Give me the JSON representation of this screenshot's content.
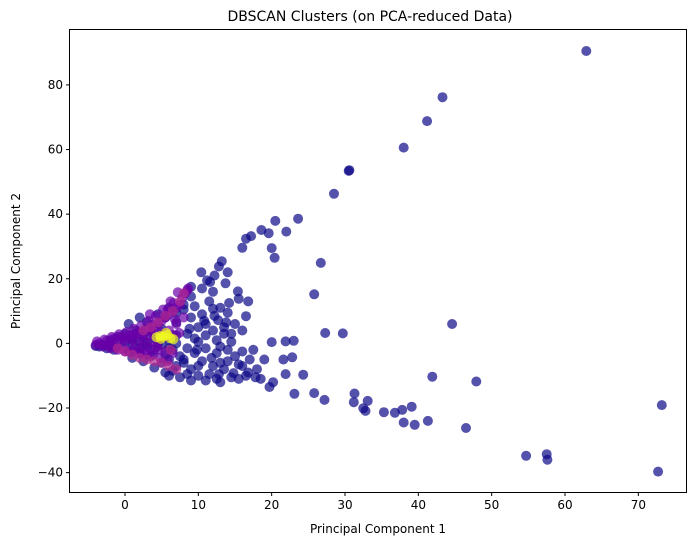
{
  "chart_data": {
    "type": "scatter",
    "title": "DBSCAN Clusters (on PCA-reduced Data)",
    "xlabel": "Principal Component 1",
    "ylabel": "Principal Component 2",
    "xlim": [
      -7.5,
      76.5
    ],
    "ylim": [
      -46,
      97
    ],
    "xticks": [
      0,
      10,
      20,
      30,
      40,
      50,
      60,
      70
    ],
    "yticks": [
      -40,
      -20,
      0,
      20,
      40,
      60,
      80
    ],
    "grid": false,
    "legend": "none",
    "colors": {
      "noise": "#0d0887",
      "cluster_purple": "#6a00a8",
      "cluster_magenta": "#b12a90",
      "cluster_yellow": "#f0f921"
    },
    "series": [
      {
        "color": "#0d0887",
        "points": [
          [
            62.9,
            90.5
          ],
          [
            43.3,
            76.2
          ],
          [
            41.2,
            68.8
          ],
          [
            38.0,
            60.6
          ],
          [
            30.6,
            53.6
          ],
          [
            30.5,
            53.4
          ],
          [
            28.5,
            46.3
          ],
          [
            23.6,
            38.6
          ],
          [
            20.5,
            37.9
          ],
          [
            18.6,
            35.1
          ],
          [
            17.2,
            33.2
          ],
          [
            16.5,
            32.4
          ],
          [
            22.0,
            34.6
          ],
          [
            19.6,
            34.1
          ],
          [
            16.0,
            29.6
          ],
          [
            20.0,
            29.5
          ],
          [
            20.4,
            26.5
          ],
          [
            26.7,
            24.9
          ],
          [
            13.2,
            25.4
          ],
          [
            12.8,
            23.8
          ],
          [
            14.0,
            22.0
          ],
          [
            10.4,
            22.0
          ],
          [
            11.6,
            19.0
          ],
          [
            13.7,
            18.6
          ],
          [
            9.0,
            17.5
          ],
          [
            15.4,
            16.1
          ],
          [
            16.8,
            13.0
          ],
          [
            25.8,
            15.2
          ],
          [
            15.5,
            13.8
          ],
          [
            44.6,
            6.0
          ],
          [
            12.0,
            10.7
          ],
          [
            16.5,
            8.4
          ],
          [
            12.7,
            7.2
          ],
          [
            11.0,
            6.0
          ],
          [
            13.5,
            5.0
          ],
          [
            14.5,
            3.0
          ],
          [
            27.3,
            3.2
          ],
          [
            29.7,
            3.1
          ],
          [
            20.0,
            0.4
          ],
          [
            21.9,
            0.6
          ],
          [
            23.0,
            0.8
          ],
          [
            17.5,
            -2.0
          ],
          [
            21.6,
            -5.0
          ],
          [
            22.8,
            -4.3
          ],
          [
            19.0,
            -5.0
          ],
          [
            14.0,
            -5.5
          ],
          [
            16.0,
            -7.0
          ],
          [
            41.9,
            -10.3
          ],
          [
            47.9,
            -11.8
          ],
          [
            24.3,
            -9.7
          ],
          [
            21.9,
            -9.5
          ],
          [
            20.2,
            -12.0
          ],
          [
            19.7,
            -13.5
          ],
          [
            18.5,
            -11.0
          ],
          [
            17.8,
            -10.5
          ],
          [
            16.8,
            -9.0
          ],
          [
            15.5,
            -11.0
          ],
          [
            14.5,
            -10.5
          ],
          [
            23.1,
            -15.6
          ],
          [
            25.8,
            -15.4
          ],
          [
            27.2,
            -17.5
          ],
          [
            31.3,
            -15.5
          ],
          [
            31.2,
            -18.2
          ],
          [
            33.1,
            -17.8
          ],
          [
            32.5,
            -20.1
          ],
          [
            32.8,
            -20.9
          ],
          [
            35.3,
            -21.3
          ],
          [
            36.8,
            -21.5
          ],
          [
            37.8,
            -20.6
          ],
          [
            38.0,
            -24.5
          ],
          [
            39.1,
            -19.6
          ],
          [
            39.5,
            -25.2
          ],
          [
            41.3,
            -24.0
          ],
          [
            46.5,
            -26.2
          ],
          [
            54.7,
            -34.8
          ],
          [
            57.5,
            -34.3
          ],
          [
            57.6,
            -36.0
          ],
          [
            73.2,
            -19.1
          ],
          [
            72.7,
            -39.7
          ],
          [
            8.0,
            12.0
          ],
          [
            9.0,
            14.5
          ],
          [
            10.5,
            9.0
          ],
          [
            7.0,
            6.5
          ],
          [
            8.5,
            3.0
          ],
          [
            9.5,
            -3.0
          ],
          [
            10.5,
            -5.5
          ],
          [
            12.0,
            -7.0
          ],
          [
            12.5,
            -3.0
          ],
          [
            11.0,
            2.5
          ],
          [
            13.0,
            -1.0
          ],
          [
            10.0,
            0.5
          ],
          [
            6.5,
            -2.0
          ],
          [
            7.5,
            -4.0
          ],
          [
            8.0,
            -6.0
          ],
          [
            9.0,
            -8.0
          ],
          [
            11.5,
            -9.5
          ],
          [
            12.5,
            -11.0
          ],
          [
            13.5,
            -8.0
          ],
          [
            15.0,
            -4.0
          ],
          [
            16.0,
            -2.5
          ],
          [
            14.5,
            0.5
          ],
          [
            12.0,
            4.0
          ],
          [
            10.0,
            5.0
          ],
          [
            9.0,
            8.0
          ],
          [
            11.5,
            13.0
          ],
          [
            12.0,
            16.0
          ],
          [
            10.5,
            17.0
          ],
          [
            9.5,
            11.5
          ],
          [
            13.0,
            11.0
          ],
          [
            14.0,
            9.5
          ],
          [
            15.0,
            6.0
          ],
          [
            16.0,
            4.0
          ],
          [
            17.0,
            -5.0
          ],
          [
            18.0,
            -8.0
          ],
          [
            13.0,
            -12.0
          ],
          [
            11.0,
            -11.5
          ],
          [
            10.0,
            -10.0
          ],
          [
            8.5,
            -9.5
          ],
          [
            7.0,
            -7.0
          ],
          [
            6.0,
            -5.0
          ],
          [
            5.5,
            -3.5
          ],
          [
            4.0,
            -2.0
          ],
          [
            3.0,
            -1.0
          ],
          [
            2.0,
            0.5
          ],
          [
            1.0,
            1.5
          ],
          [
            0.0,
            3.0
          ],
          [
            -1.0,
            2.0
          ],
          [
            -2.0,
            1.0
          ],
          [
            -3.0,
            -0.5
          ],
          [
            -3.5,
            -1.0
          ],
          [
            -4.0,
            -0.8
          ],
          [
            -2.5,
            -1.5
          ],
          [
            -1.5,
            -2.0
          ],
          [
            0.5,
            -2.5
          ],
          [
            2.0,
            -3.0
          ],
          [
            3.5,
            -4.0
          ],
          [
            5.0,
            -6.0
          ],
          [
            6.5,
            -8.5
          ],
          [
            7.5,
            -10.5
          ],
          [
            9.0,
            -11.5
          ],
          [
            4.5,
            0.0
          ],
          [
            6.0,
            1.0
          ],
          [
            7.0,
            2.5
          ],
          [
            5.0,
            4.5
          ],
          [
            3.5,
            3.5
          ],
          [
            2.5,
            2.0
          ],
          [
            1.5,
            4.0
          ],
          [
            0.5,
            6.0
          ],
          [
            3.0,
            6.5
          ],
          [
            5.5,
            8.0
          ],
          [
            7.0,
            9.5
          ],
          [
            8.0,
            10.5
          ],
          [
            6.0,
            11.0
          ],
          [
            4.5,
            9.0
          ],
          [
            2.0,
            8.0
          ],
          [
            1.0,
            -4.5
          ],
          [
            2.5,
            -5.5
          ],
          [
            4.0,
            -7.5
          ],
          [
            5.5,
            -9.0
          ],
          [
            6.0,
            -10.0
          ],
          [
            8.5,
            -1.5
          ],
          [
            9.5,
            1.5
          ],
          [
            11.0,
            -1.5
          ],
          [
            12.5,
            1.0
          ],
          [
            13.5,
            3.0
          ],
          [
            14.0,
            -2.0
          ],
          [
            15.5,
            -6.5
          ],
          [
            13.0,
            -6.0
          ],
          [
            10.0,
            -7.0
          ],
          [
            8.0,
            -5.0
          ],
          [
            7.0,
            0.0
          ],
          [
            6.0,
            -1.5
          ],
          [
            5.0,
            -0.5
          ],
          [
            4.0,
            1.5
          ],
          [
            3.0,
            0.0
          ],
          [
            2.0,
            -1.5
          ],
          [
            1.0,
            0.0
          ],
          [
            0.0,
            0.5
          ],
          [
            -1.0,
            -1.0
          ],
          [
            -2.0,
            -0.5
          ],
          [
            16.5,
            -10.0
          ],
          [
            14.8,
            -9.2
          ],
          [
            12.8,
            -9.5
          ],
          [
            11.8,
            -4.5
          ],
          [
            9.8,
            -2.0
          ],
          [
            8.8,
            4.5
          ],
          [
            10.8,
            7.0
          ],
          [
            12.2,
            8.5
          ],
          [
            13.8,
            6.5
          ],
          [
            14.2,
            12.5
          ],
          [
            11.2,
            19.5
          ],
          [
            12.2,
            21.0
          ]
        ]
      },
      {
        "color": "#6a00a8",
        "points": [
          [
            -4.0,
            -0.5
          ],
          [
            -3.5,
            0.0
          ],
          [
            -3.0,
            -1.0
          ],
          [
            -2.5,
            0.8
          ],
          [
            -2.0,
            -1.5
          ],
          [
            -1.5,
            1.5
          ],
          [
            -1.0,
            -2.0
          ],
          [
            -0.5,
            2.0
          ],
          [
            0.0,
            -2.5
          ],
          [
            0.5,
            2.5
          ],
          [
            1.0,
            -2.8
          ],
          [
            1.5,
            3.0
          ],
          [
            2.0,
            -3.2
          ],
          [
            2.5,
            3.5
          ],
          [
            3.0,
            -3.6
          ],
          [
            3.5,
            4.0
          ],
          [
            4.0,
            5.0
          ],
          [
            4.5,
            6.0
          ],
          [
            5.0,
            7.0
          ],
          [
            5.5,
            8.0
          ],
          [
            6.0,
            9.0
          ],
          [
            6.5,
            10.0
          ],
          [
            7.0,
            11.0
          ],
          [
            7.5,
            12.0
          ],
          [
            7.8,
            14.0
          ],
          [
            8.2,
            15.5
          ],
          [
            8.5,
            16.5
          ],
          [
            6.2,
            13.0
          ],
          [
            5.2,
            10.5
          ],
          [
            4.2,
            8.5
          ],
          [
            3.2,
            7.0
          ],
          [
            2.2,
            5.5
          ],
          [
            1.2,
            4.5
          ],
          [
            0.2,
            3.5
          ],
          [
            -0.8,
            2.8
          ],
          [
            -1.8,
            2.0
          ],
          [
            -2.8,
            1.2
          ],
          [
            -3.8,
            0.6
          ],
          [
            -3.2,
            -0.4
          ],
          [
            -2.2,
            -0.8
          ],
          [
            -1.2,
            -1.2
          ],
          [
            -0.2,
            -1.6
          ],
          [
            0.8,
            -2.0
          ],
          [
            1.8,
            -2.4
          ],
          [
            2.8,
            -2.8
          ],
          [
            3.8,
            -3.5
          ],
          [
            4.8,
            -4.5
          ],
          [
            5.8,
            -5.5
          ],
          [
            1.0,
            1.0
          ],
          [
            2.0,
            2.0
          ],
          [
            3.0,
            2.5
          ],
          [
            4.0,
            3.0
          ],
          [
            5.0,
            3.5
          ],
          [
            6.0,
            4.0
          ],
          [
            0.0,
            1.0
          ],
          [
            -1.0,
            0.5
          ],
          [
            -2.0,
            0.2
          ],
          [
            1.5,
            -0.5
          ],
          [
            2.5,
            -1.0
          ],
          [
            3.5,
            -1.5
          ],
          [
            4.5,
            -2.0
          ],
          [
            5.5,
            -2.5
          ],
          [
            6.5,
            -3.0
          ],
          [
            7.0,
            6.0
          ],
          [
            8.0,
            8.0
          ],
          [
            6.8,
            7.5
          ],
          [
            3.8,
            5.8
          ],
          [
            2.8,
            4.2
          ],
          [
            1.8,
            3.2
          ],
          [
            0.8,
            2.2
          ],
          [
            -0.2,
            1.5
          ],
          [
            4.6,
            1.0
          ],
          [
            3.6,
            0.5
          ],
          [
            2.6,
            0.8
          ],
          [
            5.6,
            2.0
          ],
          [
            6.6,
            2.6
          ],
          [
            7.4,
            3.2
          ],
          [
            4.4,
            -1.0
          ],
          [
            8.6,
            17.0
          ],
          [
            7.2,
            15.8
          ],
          [
            3.4,
            9.0
          ],
          [
            5.8,
            10.5
          ],
          [
            6.6,
            12.5
          ]
        ]
      },
      {
        "color": "#b12a90",
        "points": [
          [
            7.5,
            13.0
          ],
          [
            8.0,
            15.5
          ],
          [
            6.5,
            10.0
          ],
          [
            5.5,
            8.5
          ],
          [
            4.5,
            6.5
          ],
          [
            3.5,
            5.0
          ],
          [
            2.5,
            4.0
          ],
          [
            -1.0,
            -1.5
          ],
          [
            0.0,
            -2.5
          ],
          [
            1.0,
            -3.5
          ],
          [
            2.0,
            -4.5
          ],
          [
            3.0,
            -5.0
          ],
          [
            4.0,
            -5.5
          ],
          [
            5.0,
            -6.0
          ],
          [
            6.0,
            -7.0
          ],
          [
            7.0,
            -8.0
          ],
          [
            6.2,
            -2.0
          ],
          [
            5.5,
            2.5
          ]
        ]
      },
      {
        "color": "#f0f921",
        "points": [
          [
            4.3,
            1.9
          ],
          [
            4.8,
            2.3
          ],
          [
            5.2,
            2.1
          ],
          [
            5.8,
            2.6
          ],
          [
            6.2,
            1.6
          ],
          [
            6.6,
            1.3
          ],
          [
            5.6,
            3.3
          ],
          [
            4.9,
            1.4
          ]
        ]
      }
    ]
  }
}
